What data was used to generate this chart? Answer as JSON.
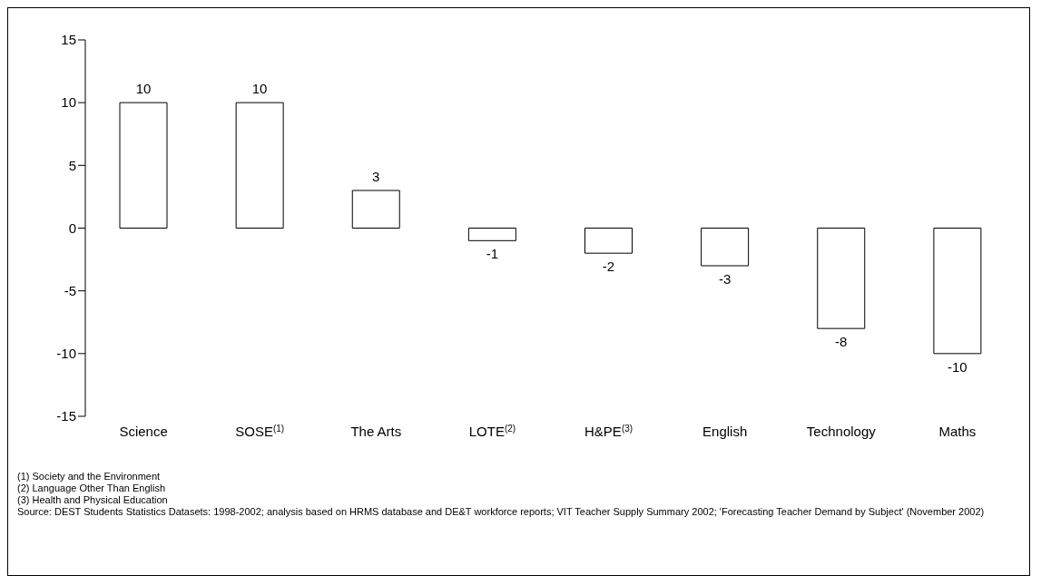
{
  "chart_data": {
    "type": "bar",
    "categories": [
      "Science",
      "SOSE$^{(1)}$",
      "The Arts",
      "LOTE$^{(2)}$",
      "H&PE$^{(3)}$",
      "English",
      "Technology",
      "Maths"
    ],
    "values": [
      10,
      10,
      3,
      -1,
      -2,
      -3,
      -8,
      -10
    ],
    "color": "#ffffff",
    "data_labels": true,
    "ylim": [
      -15,
      15
    ],
    "yticks": [
      -15,
      -10,
      -5,
      0,
      5,
      10,
      15
    ],
    "grid": false,
    "legend": false,
    "annotations": [
      "(1) Society and the Environment",
      "(2) Language Other Than English",
      "(3) Health and Physical Education",
      "Source: DEST Students Statistics Datasets: 1998-2002; analysis based on HRMS database and DE&T workforce reports; VIT Teacher Supply Summary 2002; 'Forecasting Teacher Demand by Subject' (November 2002)"
    ]
  }
}
